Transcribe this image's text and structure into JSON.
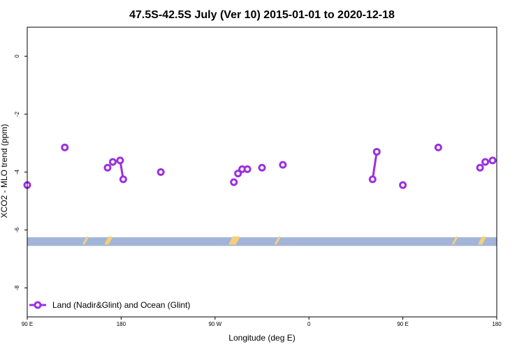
{
  "chart_data": {
    "type": "line",
    "title": "47.5S-42.5S July (Ver 10)   2015-01-01 to 2020-12-18",
    "xlabel": "Longitude (deg E)",
    "ylabel": "XCO2 - MLO trend (ppm)",
    "xlim": [
      90,
      540
    ],
    "ylim": [
      -9,
      1
    ],
    "x_ticks": [
      {
        "value": 90,
        "label": "90 E"
      },
      {
        "value": 180,
        "label": "180"
      },
      {
        "value": 270,
        "label": "90 W"
      },
      {
        "value": 360,
        "label": "0"
      },
      {
        "value": 450,
        "label": "90 E"
      },
      {
        "value": 540,
        "label": "180"
      }
    ],
    "y_ticks": [
      {
        "value": 0,
        "label": "0"
      },
      {
        "value": -2,
        "label": "-2"
      },
      {
        "value": -4,
        "label": "-4"
      },
      {
        "value": -6,
        "label": "-6"
      },
      {
        "value": -8,
        "label": "-8"
      }
    ],
    "series": [
      {
        "name": "Land (Nadir&Glint) and Ocean (Glint)",
        "color": "#9b30e0",
        "segments": [
          [
            [
              90,
              -4.45
            ]
          ],
          [
            [
              126,
              -3.15
            ]
          ],
          [
            [
              167,
              -3.85
            ]
          ],
          [
            [
              172,
              -3.65
            ]
          ],
          [
            [
              179,
              -3.6
            ],
            [
              182,
              -4.25
            ]
          ],
          [
            [
              218,
              -4.0
            ]
          ],
          [
            [
              288,
              -4.35
            ]
          ],
          [
            [
              292,
              -4.05
            ]
          ],
          [
            [
              296,
              -3.9
            ]
          ],
          [
            [
              301,
              -3.9
            ]
          ],
          [
            [
              315,
              -3.85
            ]
          ],
          [
            [
              335,
              -3.75
            ]
          ],
          [
            [
              421,
              -4.25
            ],
            [
              425,
              -3.3
            ]
          ],
          [
            [
              450,
              -4.45
            ]
          ],
          [
            [
              484,
              -3.15
            ]
          ],
          [
            [
              524,
              -3.85
            ]
          ],
          [
            [
              529,
              -3.65
            ]
          ],
          [
            [
              536,
              -3.6
            ]
          ]
        ]
      }
    ],
    "band": {
      "y_min": -6.55,
      "y_max": -6.25,
      "color": "#a2b5d8"
    },
    "land_marks": {
      "color": "#f5d07a",
      "y": -6.35,
      "x": [
        146,
        167,
        169,
        286,
        287,
        288,
        289,
        290,
        291,
        330,
        500,
        525,
        527
      ]
    },
    "legend": {
      "position": "bottom-left"
    },
    "grid": false
  }
}
